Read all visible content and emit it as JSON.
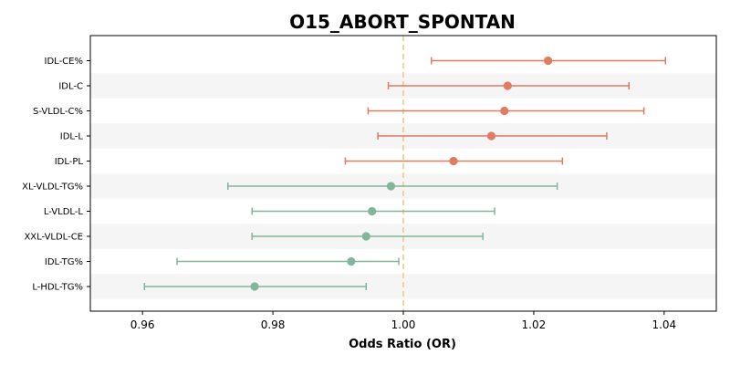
{
  "chart_data": {
    "type": "forest",
    "title": "O15_ABORT_SPONTAN",
    "xlabel": "Odds Ratio (OR)",
    "xlim": [
      0.952,
      1.048
    ],
    "xticks": [
      0.96,
      0.98,
      1.0,
      1.02,
      1.04
    ],
    "xtick_labels": [
      "0.96",
      "0.98",
      "1.00",
      "1.02",
      "1.04"
    ],
    "reference_line": 1.0,
    "reference_color": "#f0c987",
    "band_color": "#f5f5f5",
    "colors": {
      "increase": "#e07b5f",
      "decrease": "#82b59b"
    },
    "rows": [
      {
        "label": "IDL-CE%",
        "or": 1.0222,
        "lo": 1.0043,
        "hi": 1.0402,
        "direction": "increase"
      },
      {
        "label": "IDL-C",
        "or": 1.016,
        "lo": 0.9977,
        "hi": 1.0346,
        "direction": "increase"
      },
      {
        "label": "S-VLDL-C%",
        "or": 1.0155,
        "lo": 0.9946,
        "hi": 1.0369,
        "direction": "increase"
      },
      {
        "label": "IDL-L",
        "or": 1.0135,
        "lo": 0.9961,
        "hi": 1.0312,
        "direction": "increase"
      },
      {
        "label": "IDL-PL",
        "or": 1.0077,
        "lo": 0.9911,
        "hi": 1.0244,
        "direction": "increase"
      },
      {
        "label": "XL-VLDL-TG%",
        "or": 0.9981,
        "lo": 0.9731,
        "hi": 1.0236,
        "direction": "decrease"
      },
      {
        "label": "L-VLDL-L",
        "or": 0.9952,
        "lo": 0.9768,
        "hi": 1.014,
        "direction": "decrease"
      },
      {
        "label": "XXL-VLDL-CE",
        "or": 0.9943,
        "lo": 0.9768,
        "hi": 1.0122,
        "direction": "decrease"
      },
      {
        "label": "IDL-TG%",
        "or": 0.992,
        "lo": 0.9653,
        "hi": 0.9993,
        "direction": "decrease"
      },
      {
        "label": "L-HDL-TG%",
        "or": 0.9772,
        "lo": 0.9603,
        "hi": 0.9943,
        "direction": "decrease"
      }
    ]
  }
}
